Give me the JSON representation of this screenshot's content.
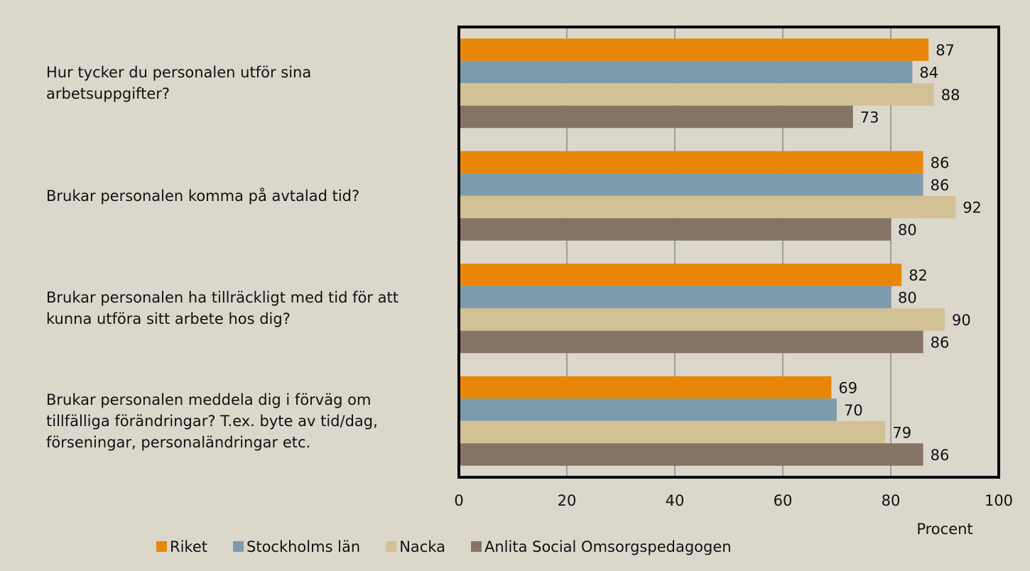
{
  "chart_data": {
    "type": "bar",
    "orientation": "horizontal",
    "categories": [
      "Hur tycker du personalen utför sina arbetsuppgifter?",
      "Brukar personalen komma på avtalad tid?",
      "Brukar personalen ha tillräckligt med tid för att kunna utföra sitt arbete hos dig?",
      "Brukar personalen meddela dig i förväg om tillfälliga förändringar? T.ex. byte av tid/dag, förseningar, personaländringar etc."
    ],
    "series": [
      {
        "name": "Riket",
        "color": "#e8860a",
        "values": [
          87,
          86,
          82,
          69
        ]
      },
      {
        "name": "Stockholms län",
        "color": "#7c9cae",
        "values": [
          84,
          86,
          80,
          70
        ]
      },
      {
        "name": "Nacka",
        "color": "#d3c196",
        "values": [
          88,
          92,
          90,
          79
        ]
      },
      {
        "name": "Anlita Social Omsorgspedagogen",
        "color": "#857463",
        "values": [
          73,
          80,
          86,
          86
        ]
      }
    ],
    "xlabel": "Procent",
    "xlim": [
      0,
      100
    ],
    "xticks": [
      0,
      20,
      40,
      60,
      80,
      100
    ],
    "grid": true,
    "legend": "bottom"
  }
}
